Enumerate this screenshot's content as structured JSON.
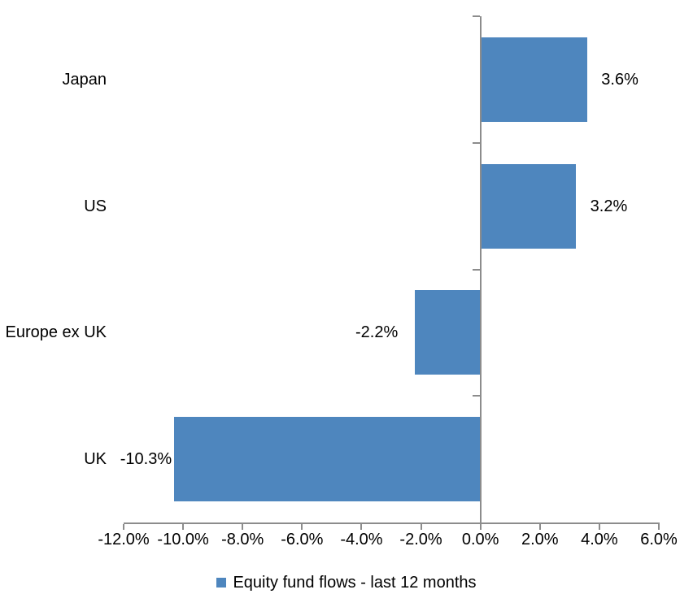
{
  "chart_data": {
    "type": "bar",
    "orientation": "horizontal",
    "title": "",
    "xlabel": "",
    "ylabel": "",
    "grid": false,
    "categories": [
      "Japan",
      "US",
      "Europe ex UK",
      "UK"
    ],
    "series": [
      {
        "name": "Equity fund flows - last 12 months",
        "values": [
          3.6,
          3.2,
          -2.2,
          -10.3
        ]
      }
    ],
    "values": [
      3.6,
      3.2,
      -2.2,
      -10.3
    ],
    "data_labels": [
      "3.6%",
      "3.2%",
      "-2.2%",
      "-10.3%"
    ],
    "xlim": [
      -12,
      6
    ],
    "x_ticks": {
      "values": [
        -12,
        -10,
        -8,
        -6,
        -4,
        -2,
        0,
        2,
        4,
        6
      ],
      "labels": [
        "-12.0%",
        "-10.0%",
        "-8.0%",
        "-6.0%",
        "-4.0%",
        "-2.0%",
        "0.0%",
        "2.0%",
        "4.0%",
        "6.0%"
      ]
    },
    "legend": {
      "position": "bottom",
      "label": "Equity fund flows - last 12 months"
    },
    "colors": {
      "bar": "#4E86BE",
      "axis": "#8C8C8C",
      "text": "#000000",
      "background": "#FFFFFF"
    }
  }
}
